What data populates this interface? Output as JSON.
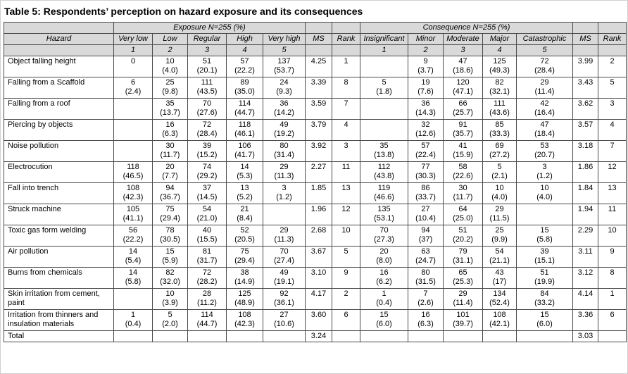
{
  "title": "Table 5: Respondents’ perception on hazard exposure and its consequences",
  "table": {
    "header": {
      "hazard": "Hazard",
      "exposure_group": "Exposure N=255 (%)",
      "consequence_group": "Consequence N=255 (%)",
      "ms": "MS",
      "rank": "Rank",
      "exposure_levels": [
        "Very low",
        "Low",
        "Regular",
        "High",
        "Very high"
      ],
      "consequence_levels": [
        "Insignificant",
        "Minor",
        "Moderate",
        "Major",
        "Catastrophic"
      ],
      "scale": [
        "1",
        "2",
        "3",
        "4",
        "5"
      ]
    },
    "rows": [
      {
        "hazard": "Object falling height",
        "exposure": [
          "0",
          "10\n(4.0)",
          "51\n(20.1)",
          "57\n(22.2)",
          "137\n(53.7)"
        ],
        "exp_ms": "4.25",
        "exp_rank": "1",
        "consequence": [
          "",
          "9\n(3.7)",
          "47\n(18.6)",
          "125\n(49.3)",
          "72\n(28.4)"
        ],
        "con_ms": "3.99",
        "con_rank": "2"
      },
      {
        "hazard": "Falling from a Scaffold",
        "exposure": [
          "6\n(2.4)",
          "25\n(9.8)",
          "111\n(43.5)",
          "89\n(35.0)",
          "24\n(9.3)"
        ],
        "exp_ms": "3.39",
        "exp_rank": "8",
        "consequence": [
          "5\n(1.8)",
          "19\n(7.6)",
          "120\n(47.1)",
          "82\n(32.1)",
          "29\n(11.4)"
        ],
        "con_ms": "3.43",
        "con_rank": "5"
      },
      {
        "hazard": "Falling from a roof",
        "exposure": [
          "",
          "35\n(13.7)",
          "70\n(27.6)",
          "114\n(44.7)",
          "36\n(14.2)"
        ],
        "exp_ms": "3.59",
        "exp_rank": "7",
        "consequence": [
          "",
          "36\n(14.3)",
          "66\n(25.7)",
          "111\n(43.6)",
          "42\n(16.4)"
        ],
        "con_ms": "3.62",
        "con_rank": "3"
      },
      {
        "hazard": "Piercing by objects",
        "exposure": [
          "",
          "16\n(6.3)",
          "72\n(28.4)",
          "118\n(46.1)",
          "49\n(19.2)"
        ],
        "exp_ms": "3.79",
        "exp_rank": "4",
        "consequence": [
          "",
          "32\n(12.6)",
          "91\n(35.7)",
          "85\n(33.3)",
          "47\n(18.4)"
        ],
        "con_ms": "3.57",
        "con_rank": "4"
      },
      {
        "hazard": "Noise pollution",
        "exposure": [
          "",
          "30\n(11.7)",
          "39\n(15.2)",
          "106\n(41.7)",
          "80\n(31.4)"
        ],
        "exp_ms": "3.92",
        "exp_rank": "3",
        "consequence": [
          "35\n(13.8)",
          "57\n(22.4)",
          "41\n(15.9)",
          "69\n(27.2)",
          "53\n(20.7)"
        ],
        "con_ms": "3.18",
        "con_rank": "7"
      },
      {
        "hazard": "Electrocution",
        "exposure": [
          "118\n(46.5)",
          "20\n(7.7)",
          "74\n(29.2)",
          "14\n(5.3)",
          "29\n(11.3)"
        ],
        "exp_ms": "2.27",
        "exp_rank": "11",
        "consequence": [
          "112\n(43.8)",
          "77\n(30.3)",
          "58\n(22.6)",
          "5\n(2.1)",
          "3\n(1.2)"
        ],
        "con_ms": "1.86",
        "con_rank": "12"
      },
      {
        "hazard": "Fall into trench",
        "exposure": [
          "108\n(42.3)",
          "94\n(36.7)",
          "37\n(14.5)",
          "13\n(5.2)",
          "3\n(1.2)"
        ],
        "exp_ms": "1.85",
        "exp_rank": "13",
        "consequence": [
          "119\n(46.6)",
          "86\n(33.7)",
          "30\n(11.7)",
          "10\n(4.0)",
          "10\n(4.0)"
        ],
        "con_ms": "1.84",
        "con_rank": "13"
      },
      {
        "hazard": "Struck machine",
        "exposure": [
          "105\n(41.1)",
          "75\n(29.4)",
          "54\n(21.0)",
          "21\n(8.4)",
          ""
        ],
        "exp_ms": "1.96",
        "exp_rank": "12",
        "consequence": [
          "135\n(53.1)",
          "27\n(10.4)",
          "64\n(25.0)",
          "29\n(11.5)",
          ""
        ],
        "con_ms": "1.94",
        "con_rank": "11"
      },
      {
        "hazard": "Toxic gas form welding",
        "exposure": [
          "56\n(22.2)",
          "78\n(30.5)",
          "40\n(15.5)",
          "52\n(20.5)",
          "29\n(11.3)"
        ],
        "exp_ms": "2.68",
        "exp_rank": "10",
        "consequence": [
          "70\n(27.3)",
          "94\n(37)",
          "51\n(20.2)",
          "25\n(9.9)",
          "15\n(5.8)"
        ],
        "con_ms": "2.29",
        "con_rank": "10"
      },
      {
        "hazard": "Air pollution",
        "exposure": [
          "14\n(5.4)",
          "15\n(5.9)",
          "81\n(31.7)",
          "75\n(29.4)",
          "70\n(27.4)"
        ],
        "exp_ms": "3.67",
        "exp_rank": "5",
        "consequence": [
          "20\n(8.0)",
          "63\n(24.7)",
          "79\n(31.1)",
          "54\n(21.1)",
          "39\n(15.1)"
        ],
        "con_ms": "3.11",
        "con_rank": "9"
      },
      {
        "hazard": "Burns from chemicals",
        "exposure": [
          "14\n(5.8)",
          "82\n(32.0)",
          "72\n(28.2)",
          "38\n(14.9)",
          "49\n(19.1)"
        ],
        "exp_ms": "3.10",
        "exp_rank": "9",
        "consequence": [
          "16\n(6.2)",
          "80\n(31.5)",
          "65\n(25.3)",
          "43\n(17)",
          "51\n(19.9)"
        ],
        "con_ms": "3.12",
        "con_rank": "8"
      },
      {
        "hazard": "Skin irritation from cement, paint",
        "exposure": [
          "",
          "10\n(3.9)",
          "28\n(11.2)",
          "125\n(48.9)",
          "92\n(36.1)"
        ],
        "exp_ms": "4.17",
        "exp_rank": "2",
        "consequence": [
          "1\n(0.4)",
          "7\n(2.6)",
          "29\n(11.4)",
          "134\n(52.4)",
          "84\n(33.2)"
        ],
        "con_ms": "4.14",
        "con_rank": "1"
      },
      {
        "hazard": "Irritation from thinners and insulation materials",
        "exposure": [
          "1\n(0.4)",
          "5\n(2.0)",
          "114\n(44.7)",
          "108\n(42.3)",
          "27\n(10.6)"
        ],
        "exp_ms": "3.60",
        "exp_rank": "6",
        "consequence": [
          "15\n(6.0)",
          "16\n(6.3)",
          "101\n(39.7)",
          "108\n(42.1)",
          "15\n(6.0)"
        ],
        "con_ms": "3.36",
        "con_rank": "6"
      }
    ],
    "total": {
      "label": "Total",
      "exp_ms": "3.24",
      "con_ms": "3.03"
    }
  }
}
